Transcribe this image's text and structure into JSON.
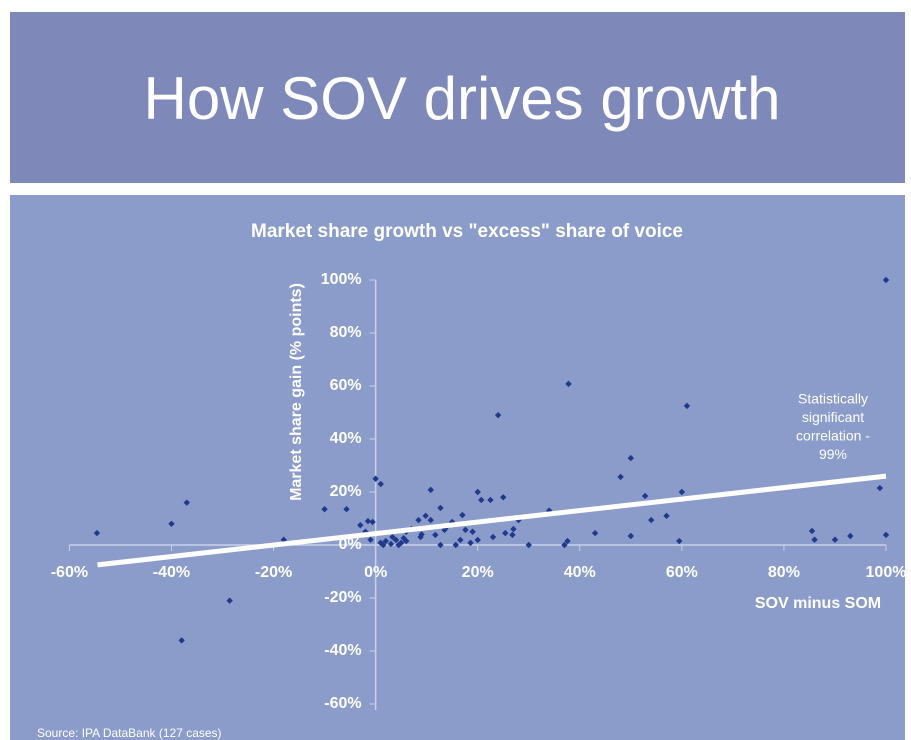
{
  "slide_title": "How SOV drives growth",
  "source": "Source: IPA DataBank (127 cases)",
  "chart_data": {
    "type": "scatter",
    "title": "Market share growth vs \"excess\" share of voice",
    "x_label": "SOV minus SOM",
    "y_label": "Market share gain (% points)",
    "annotation": [
      "Statistically",
      "significant",
      "correlation -",
      "99%"
    ],
    "color": "#1f3a8c",
    "xlim": [
      -60,
      100
    ],
    "ylim": [
      -60,
      100
    ],
    "xticks": [
      {
        "value": -60,
        "label": "-60%"
      },
      {
        "value": -40,
        "label": "-40%"
      },
      {
        "value": -20,
        "label": "-20%"
      },
      {
        "value": 0,
        "label": "0%"
      },
      {
        "value": 20,
        "label": "20%"
      },
      {
        "value": 40,
        "label": "40%"
      },
      {
        "value": 60,
        "label": "60%"
      },
      {
        "value": 80,
        "label": "80%"
      },
      {
        "value": 100,
        "label": "100%"
      }
    ],
    "yticks": [
      {
        "value": -60,
        "label": "-60%"
      },
      {
        "value": -40,
        "label": "-40%"
      },
      {
        "value": -20,
        "label": "-20%"
      },
      {
        "value": 0,
        "label": "0%"
      },
      {
        "value": 20,
        "label": "20%"
      },
      {
        "value": 40,
        "label": "40%"
      },
      {
        "value": 60,
        "label": "60%"
      },
      {
        "value": 80,
        "label": "80%"
      },
      {
        "value": 100,
        "label": "100%"
      }
    ],
    "x": [
      -54.6,
      -40,
      -37,
      -38,
      -28.6,
      -18,
      -10,
      -5.7,
      0,
      1,
      -3,
      -1.5,
      -0.6,
      -2,
      -1,
      1,
      2,
      3,
      4,
      5,
      6,
      1.5,
      3.3,
      4.5,
      5.5,
      7,
      8.4,
      9.8,
      10.8,
      10.8,
      12.7,
      13.5,
      15,
      16.6,
      17.6,
      18.6,
      20,
      20.7,
      20,
      22.5,
      24,
      25,
      25.4,
      26.8,
      28,
      30,
      34,
      37,
      37.6,
      37.8,
      43,
      48,
      50,
      50,
      52.8,
      54,
      57,
      59.5,
      60,
      61,
      85.5,
      86,
      90,
      93,
      98.8,
      100,
      100,
      8.8,
      11.7,
      12.7,
      15.7,
      17,
      6,
      9,
      14,
      19,
      23,
      27
    ],
    "y": [
      4.5,
      8,
      16,
      -36,
      -21,
      2,
      13.5,
      13.5,
      25,
      23,
      7.5,
      9,
      8.7,
      5,
      2,
      0.8,
      1.5,
      0.4,
      1.9,
      0.8,
      1.5,
      0,
      3,
      0,
      2.6,
      6,
      9.4,
      11,
      20.8,
      9.4,
      14,
      5.7,
      8.7,
      1.9,
      5.7,
      0.8,
      20,
      17,
      1.9,
      17,
      49,
      18,
      4.5,
      3.8,
      9.4,
      0,
      13,
      0,
      1.5,
      60.8,
      4.5,
      25.7,
      32.8,
      3.4,
      18.5,
      9.4,
      11,
      1.5,
      20,
      52.5,
      5.3,
      2,
      2,
      3.4,
      21.5,
      100,
      3.8,
      3,
      3.8,
      0,
      0,
      11.3,
      5,
      4,
      7,
      5,
      3,
      6
    ],
    "trendline": {
      "x": [
        -54.5,
        100
      ],
      "y": [
        -7.5,
        26
      ]
    }
  }
}
